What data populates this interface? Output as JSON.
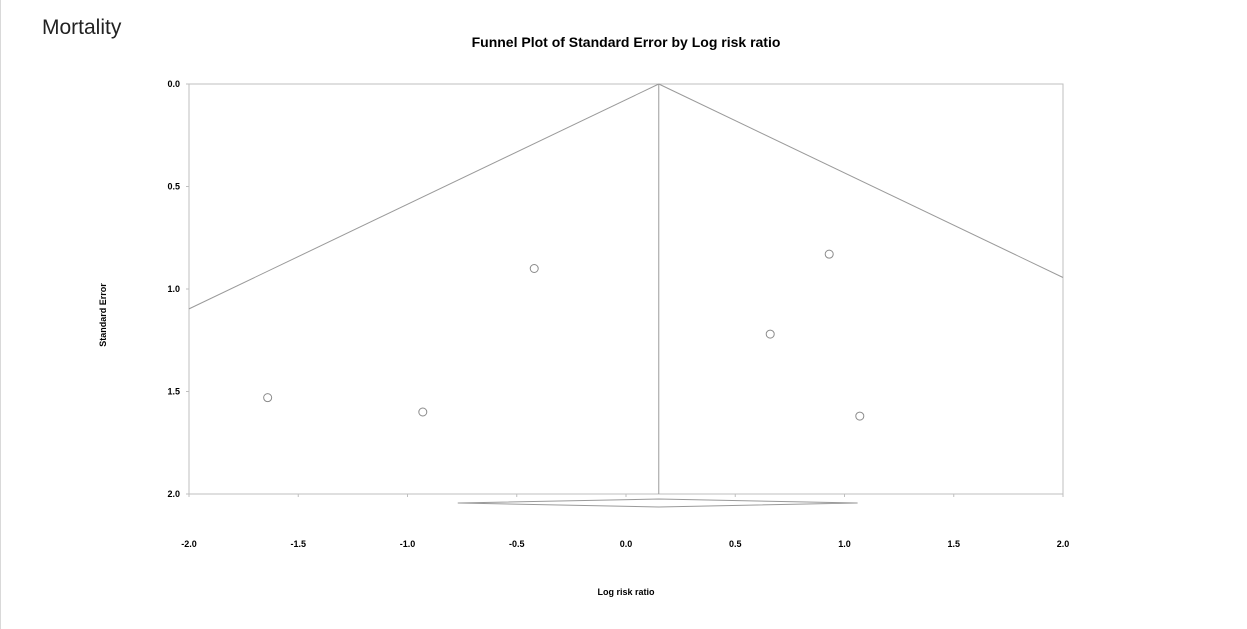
{
  "header": {
    "section_label": "Mortality"
  },
  "chart_data": {
    "type": "scatter",
    "title": "Funnel Plot of Standard Error by Log risk ratio",
    "xlabel": "Log risk ratio",
    "ylabel": "Standard Error",
    "xlim": [
      -2.0,
      2.0
    ],
    "ylim": [
      0.0,
      2.0
    ],
    "y_inverted": true,
    "x_ticks": [
      "-2.0",
      "-1.5",
      "-1.0",
      "-0.5",
      "0.0",
      "0.5",
      "1.0",
      "1.5",
      "2.0"
    ],
    "y_ticks": [
      "0.0",
      "0.5",
      "1.0",
      "1.5",
      "2.0"
    ],
    "grid": false,
    "legend": "none",
    "summary_effect": 0.15,
    "summary_ci": [
      -0.77,
      1.06
    ],
    "funnel_multiplier": 1.96,
    "points": [
      {
        "x": -1.64,
        "y": 1.53
      },
      {
        "x": -0.93,
        "y": 1.6
      },
      {
        "x": -0.42,
        "y": 0.9
      },
      {
        "x": 0.66,
        "y": 1.22
      },
      {
        "x": 0.93,
        "y": 0.83
      },
      {
        "x": 1.07,
        "y": 1.62
      }
    ],
    "colors": {
      "axis": "#bfbfbf",
      "funnel": "#9a9a9a",
      "points": "#8a8a8a"
    }
  }
}
